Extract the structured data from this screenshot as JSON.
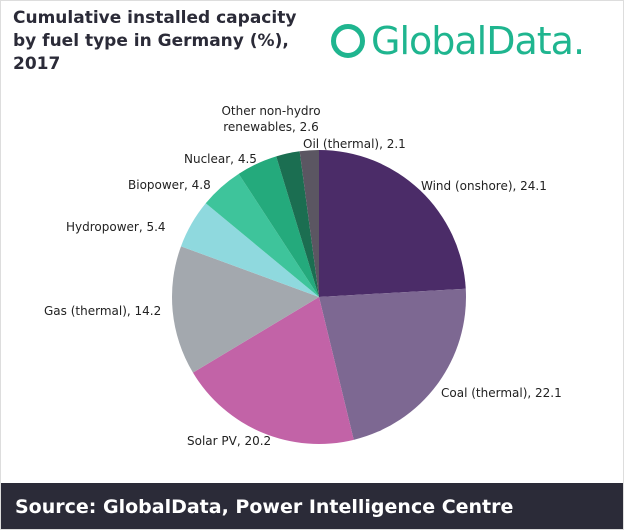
{
  "chart_data": {
    "type": "pie",
    "title": "Cumulative installed capacity by fuel type in Germany (%), 2017",
    "values": [
      24.1,
      22.1,
      20.2,
      14.2,
      5.4,
      4.8,
      4.5,
      2.6,
      2.1
    ],
    "value_labels": [
      "Wind (onshore), 24.1",
      "Coal (thermal), 22.1",
      "Solar PV, 20.2",
      "Gas (thermal), 14.2",
      "Hydropower, 5.4",
      "Biopower, 4.8",
      "Nuclear, 4.5",
      "Other non-hydro renewables, 2.6",
      "Oil (thermal), 2.1"
    ],
    "colors": [
      "#4b2c68",
      "#7d6892",
      "#c263a7",
      "#a3a8ae",
      "#8fd9de",
      "#3ec49b",
      "#24aa7c",
      "#1b6e51",
      "#5b5662"
    ]
  },
  "logo": "GlobalData.",
  "source": "Source: GlobalData, Power Intelligence Centre"
}
